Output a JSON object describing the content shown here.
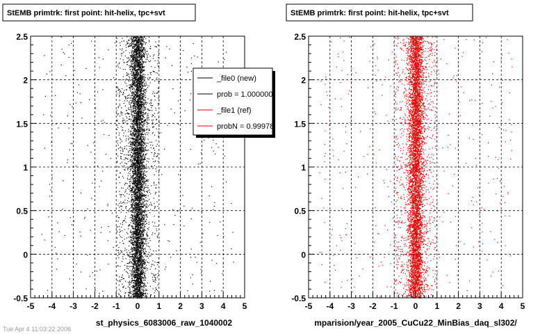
{
  "footer_text": "Tue Apr 4 11:03:22 2006",
  "chart_data": [
    {
      "type": "scatter",
      "title": "StEMB primtrk: first point: hit-helix, tpc+svt",
      "xlabel": "st_physics_6083006_raw_1040002",
      "ylabel": "",
      "xlim": [
        -5,
        5
      ],
      "ylim": [
        -0.5,
        2.5
      ],
      "xticks": [
        "-5",
        "-4",
        "-3",
        "-2",
        "-1",
        "0",
        "1",
        "2",
        "3",
        "4",
        "5"
      ],
      "yticks": [
        "-0.5",
        "0",
        "0.5",
        "1",
        "1.5",
        "2",
        "2.5"
      ],
      "grid": true,
      "point_color": "#000000",
      "distribution": {
        "x_center": 0.0,
        "x_core_sigma": 0.18,
        "halo_x_range": [
          -1.0,
          1.0
        ],
        "y_range": [
          -0.5,
          2.5
        ],
        "density": "high, roughly uniform in y"
      },
      "legend": {
        "placement": "top-right",
        "entries": [
          {
            "label": "_file0 (new)",
            "color": "#000000"
          },
          {
            "label": "prob = 1.000000",
            "color": "#000000"
          },
          {
            "label": "_file1 (ref)",
            "color": "#d40000"
          },
          {
            "label": "probN = 0.99978",
            "color": "#d40000"
          }
        ]
      }
    },
    {
      "type": "scatter",
      "title": "StEMB primtrk: first point: hit-helix, tpc+svt",
      "xlabel": "mparision/year_2005_CuCu22_MinBias_daq_sl302/",
      "ylabel": "",
      "xlim": [
        -5,
        5
      ],
      "ylim": [
        -0.5,
        2.5
      ],
      "xticks": [
        "-5",
        "-4",
        "-3",
        "-2",
        "-1",
        "0",
        "1",
        "2",
        "3",
        "4",
        "5"
      ],
      "yticks": [
        "-0.5",
        "0",
        "0.5",
        "1",
        "1.5",
        "2",
        "2.5"
      ],
      "grid": true,
      "point_color": "#e00000",
      "distribution": {
        "x_center": 0.0,
        "x_core_sigma": 0.18,
        "halo_x_range": [
          -1.0,
          1.0
        ],
        "y_range": [
          -0.5,
          2.5
        ],
        "density": "high, roughly uniform in y"
      }
    }
  ]
}
